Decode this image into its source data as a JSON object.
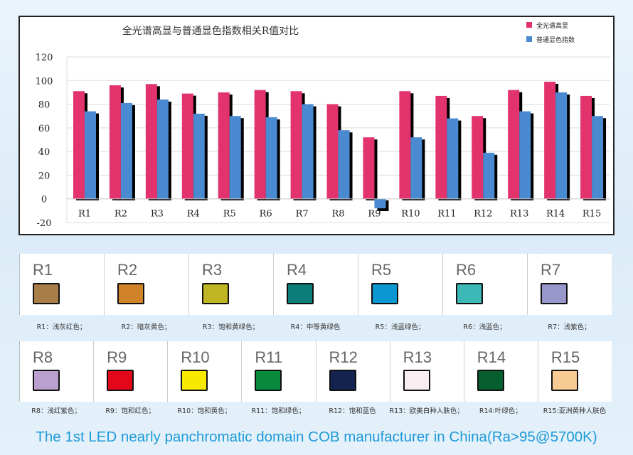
{
  "chart_data": {
    "type": "bar",
    "title": "全光谱高显与普通显色指数相关R值对比",
    "categories": [
      "R1",
      "R2",
      "R3",
      "R4",
      "R5",
      "R6",
      "R7",
      "R8",
      "R9",
      "R10",
      "R11",
      "R12",
      "R13",
      "R14",
      "R15"
    ],
    "series": [
      {
        "name": "全光谱高显",
        "color": "#e2336c",
        "values": [
          91,
          96,
          97,
          89,
          90,
          92,
          91,
          80,
          52,
          91,
          87,
          70,
          92,
          99,
          87
        ]
      },
      {
        "name": "普通显色指数",
        "color": "#4a8ad0",
        "values": [
          74,
          81,
          84,
          72,
          70,
          69,
          80,
          58,
          -8,
          52,
          68,
          39,
          74,
          90,
          70
        ]
      }
    ],
    "ylim": [
      -20,
      120
    ],
    "yticks": [
      -20,
      0,
      20,
      40,
      60,
      80,
      100,
      120
    ],
    "grid": true,
    "legend": "top-right"
  },
  "swatches_row1": [
    {
      "code": "R1",
      "color": "#a97d47",
      "label": "R1：浅灰红色；"
    },
    {
      "code": "R2",
      "color": "#cf8228",
      "label": "R2：暗灰黄色；"
    },
    {
      "code": "R3",
      "color": "#c0b624",
      "label": "R3：饱和黄绿色；"
    },
    {
      "code": "R4",
      "color": "#0c7d78",
      "label": "R4：中等黄绿色"
    },
    {
      "code": "R5",
      "color": "#0b98d2",
      "label": "R5：浅蓝绿色；"
    },
    {
      "code": "R6",
      "color": "#3cb9b7",
      "label": "R6：浅蓝色；"
    },
    {
      "code": "R7",
      "color": "#9797cc",
      "label": "R7：浅紫色；"
    }
  ],
  "swatches_row2": [
    {
      "code": "R8",
      "color": "#b9a0cf",
      "label": "R8：浅红紫色；"
    },
    {
      "code": "R9",
      "color": "#e3071a",
      "label": "R9：饱和红色；"
    },
    {
      "code": "R10",
      "color": "#f7ea00",
      "label": "R10：饱和黄色；"
    },
    {
      "code": "R11",
      "color": "#088a3d",
      "label": "R11：饱和绿色；"
    },
    {
      "code": "R12",
      "color": "#14224f",
      "label": "R12：饱和蓝色"
    },
    {
      "code": "R13",
      "color": "#f8eef2",
      "label": "R13：欧美白种人肤色；"
    },
    {
      "code": "R14",
      "color": "#075e2e",
      "label": "R14:叶绿色；"
    },
    {
      "code": "R15",
      "color": "#f9cb94",
      "label": "R15:亚洲黄种人肤色"
    }
  ],
  "footer": "The 1st LED nearly panchromatic domain COB manufacturer in China(Ra>95@5700K)"
}
